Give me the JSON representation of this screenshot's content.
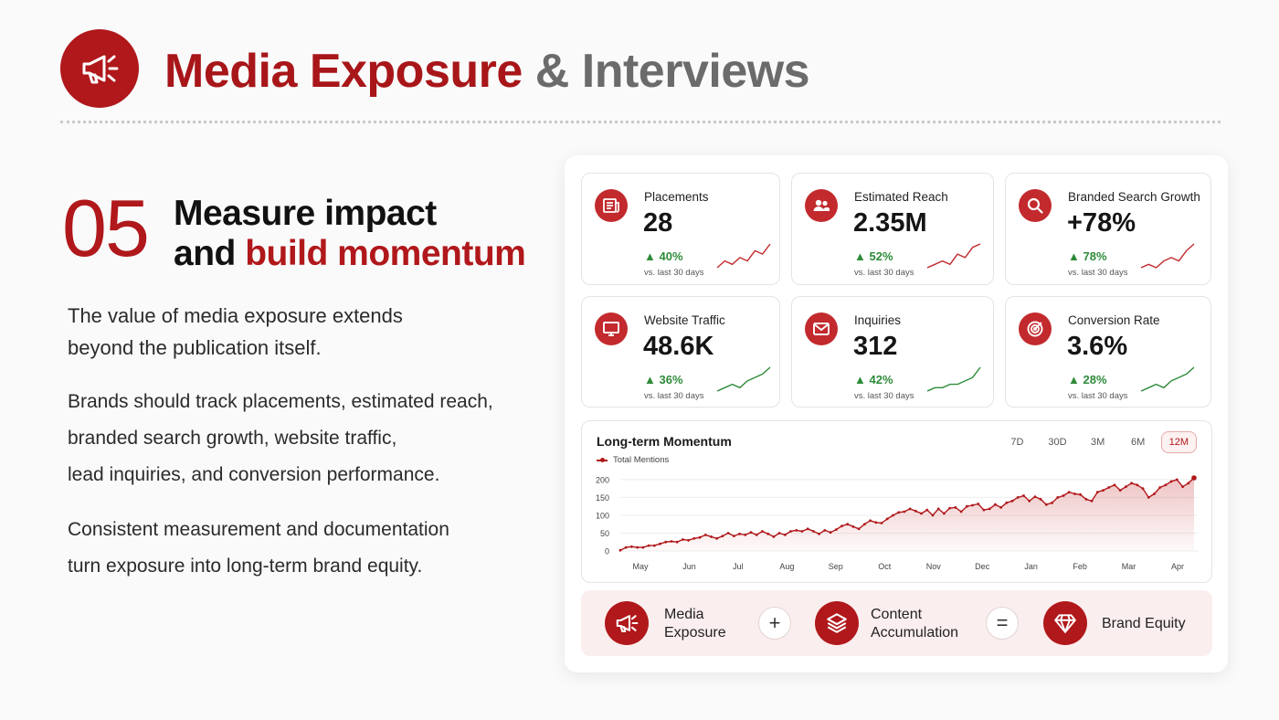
{
  "page": {
    "title_part1": "Media Exposure",
    "title_amp": "&",
    "title_part2": "Interviews",
    "logo_icon": "megaphone-icon",
    "accent_color": "#b0181b"
  },
  "section": {
    "number": "05",
    "heading_line1": "Measure impact",
    "heading_line2_prefix": "and",
    "heading_line2_highlight": "build momentum",
    "paragraph1_line1": "The value of media exposure extends",
    "paragraph1_line2": "beyond the publication itself.",
    "paragraph2_line1": "Brands should track placements, estimated reach,",
    "paragraph2_line2": "branded search growth, website traffic,",
    "paragraph2_line3": "lead inquiries, and conversion performance.",
    "paragraph3_line1": "Consistent measurement and documentation",
    "paragraph3_line2": "turn exposure into long-term brand equity."
  },
  "metrics": [
    {
      "label": "Placements",
      "value": "28",
      "change": "40%",
      "sub": "vs. last 30 days",
      "icon": "newspaper-icon",
      "trend": [
        2,
        4,
        3,
        5,
        4,
        7,
        6,
        9
      ]
    },
    {
      "label": "Estimated Reach",
      "value": "2.35M",
      "change": "52%",
      "sub": "vs. last 30 days",
      "icon": "users-icon",
      "trend": [
        2,
        3,
        4,
        3,
        6,
        5,
        8,
        9
      ]
    },
    {
      "label": "Branded Search Growth",
      "value": "+78%",
      "change": "78%",
      "sub": "vs. last 30 days",
      "icon": "search-icon",
      "trend": [
        2,
        3,
        2,
        4,
        5,
        4,
        7,
        9
      ]
    },
    {
      "label": "Website Traffic",
      "value": "48.6K",
      "change": "36%",
      "sub": "vs. last 30 days",
      "icon": "monitor-icon",
      "trend": [
        2,
        3,
        4,
        3,
        5,
        6,
        7,
        9
      ]
    },
    {
      "label": "Inquiries",
      "value": "312",
      "change": "42%",
      "sub": "vs. last 30 days",
      "icon": "mail-icon",
      "trend": [
        2,
        3,
        3,
        4,
        4,
        5,
        6,
        9
      ]
    },
    {
      "label": "Conversion Rate",
      "value": "3.6%",
      "change": "28%",
      "sub": "vs. last 30 days",
      "icon": "target-icon",
      "trend": [
        2,
        3,
        4,
        3,
        5,
        6,
        7,
        9
      ]
    }
  ],
  "long_term": {
    "title": "Long-term Momentum",
    "legend": "Total Mentions",
    "ranges": [
      "7D",
      "30D",
      "3M",
      "6M",
      "12M"
    ],
    "active_range": "12M"
  },
  "chart_data": {
    "type": "area",
    "title": "Long-term Momentum",
    "series": [
      {
        "name": "Total Mentions",
        "values": [
          2,
          10,
          12,
          10,
          10,
          15,
          15,
          20,
          25,
          27,
          25,
          32,
          30,
          35,
          38,
          45,
          40,
          35,
          42,
          50,
          42,
          48,
          45,
          52,
          45,
          55,
          48,
          40,
          50,
          45,
          55,
          58,
          55,
          62,
          55,
          48,
          58,
          52,
          60,
          70,
          75,
          68,
          62,
          75,
          85,
          80,
          78,
          90,
          100,
          108,
          110,
          118,
          112,
          105,
          115,
          100,
          118,
          105,
          120,
          122,
          110,
          125,
          128,
          132,
          115,
          118,
          130,
          122,
          135,
          140,
          150,
          155,
          140,
          152,
          145,
          130,
          135,
          150,
          155,
          165,
          160,
          158,
          145,
          140,
          165,
          170,
          178,
          185,
          170,
          180,
          190,
          185,
          175,
          150,
          160,
          178,
          185,
          195,
          200,
          180,
          190,
          205
        ]
      }
    ],
    "x_labels": [
      "May",
      "Jun",
      "Jul",
      "Aug",
      "Sep",
      "Oct",
      "Nov",
      "Dec",
      "Jan",
      "Feb",
      "Mar",
      "Apr"
    ],
    "y_ticks": [
      0,
      50,
      100,
      150,
      200
    ],
    "ylim": [
      0,
      210
    ],
    "grid": true,
    "legend_position": "top-left"
  },
  "equation": {
    "item1": {
      "label_line1": "Media",
      "label_line2": "Exposure",
      "icon": "megaphone-icon"
    },
    "op1": "+",
    "item2": {
      "label_line1": "Content",
      "label_line2": "Accumulation",
      "icon": "layers-icon"
    },
    "op2": "=",
    "item3": {
      "label": "Brand Equity",
      "icon": "diamond-icon"
    }
  }
}
